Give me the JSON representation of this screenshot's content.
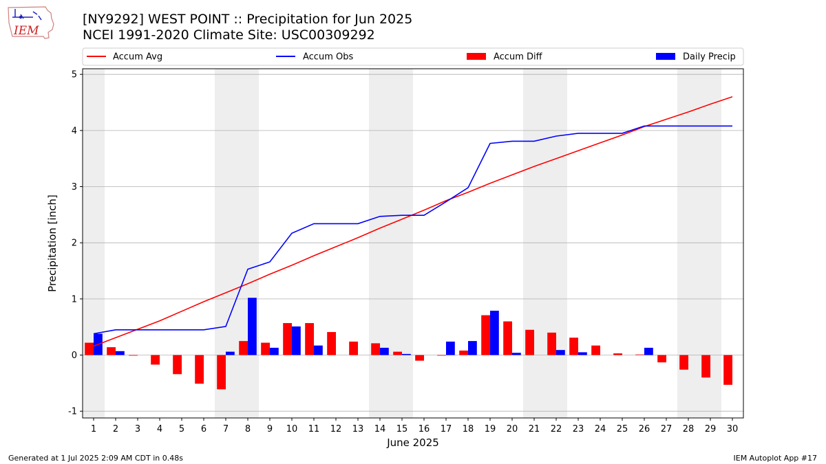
{
  "header": {
    "title_line1": "[NY9292] WEST POINT :: Precipitation for Jun 2025",
    "title_line2": "NCEI 1991-2020 Climate Site: USC00309292"
  },
  "logo": {
    "text": "IEM"
  },
  "footer": {
    "left": "Generated at 1 Jul 2025 2:09 AM CDT in 0.48s",
    "right": "IEM Autoplot App #17"
  },
  "colors": {
    "avg": "#ff0000",
    "obs": "#0000ff",
    "diff": "#ff0000",
    "daily": "#0000ff",
    "weekend_shade": "#eeeeee",
    "grid": "#b0b0b0"
  },
  "chart_data": {
    "type": "bar",
    "xlabel": "June 2025",
    "ylabel": "Precipitation [inch]",
    "xlim": [
      0.5,
      30.5
    ],
    "ylim": [
      -1.12,
      5.1
    ],
    "yticks": [
      -1,
      0,
      1,
      2,
      3,
      4,
      5
    ],
    "grid": true,
    "legend_position": "top",
    "days": [
      1,
      2,
      3,
      4,
      5,
      6,
      7,
      8,
      9,
      10,
      11,
      12,
      13,
      14,
      15,
      16,
      17,
      18,
      19,
      20,
      21,
      22,
      23,
      24,
      25,
      26,
      27,
      28,
      29,
      30
    ],
    "shaded_weekend_days": [
      1,
      7,
      8,
      14,
      15,
      21,
      22,
      28,
      29
    ],
    "series": [
      {
        "name": "Accum Avg",
        "kind": "line",
        "values": [
          0.16,
          0.31,
          0.46,
          0.61,
          0.78,
          0.95,
          1.11,
          1.27,
          1.44,
          1.6,
          1.77,
          1.93,
          2.09,
          2.26,
          2.42,
          2.58,
          2.75,
          2.9,
          3.06,
          3.21,
          3.36,
          3.5,
          3.64,
          3.78,
          3.92,
          4.07,
          4.2,
          4.33,
          4.47,
          4.6
        ]
      },
      {
        "name": "Accum Obs",
        "kind": "line",
        "values": [
          0.38,
          0.45,
          0.45,
          0.45,
          0.45,
          0.45,
          0.51,
          1.53,
          1.66,
          2.17,
          2.34,
          2.34,
          2.34,
          2.47,
          2.49,
          2.49,
          2.73,
          2.98,
          3.77,
          3.81,
          3.81,
          3.9,
          3.95,
          3.95,
          3.95,
          4.08,
          4.08,
          4.08,
          4.08,
          4.08
        ]
      },
      {
        "name": "Accum Diff",
        "kind": "bar",
        "values": [
          0.22,
          0.14,
          -0.01,
          -0.17,
          -0.34,
          -0.51,
          -0.61,
          0.25,
          0.22,
          0.57,
          0.57,
          0.41,
          0.24,
          0.21,
          0.06,
          -0.1,
          -0.01,
          0.08,
          0.71,
          0.6,
          0.45,
          0.4,
          0.31,
          0.17,
          0.03,
          0.01,
          -0.13,
          -0.26,
          -0.4,
          -0.53
        ]
      },
      {
        "name": "Daily Precip",
        "kind": "bar",
        "values": [
          0.38,
          0.07,
          0,
          0,
          0,
          0,
          0.06,
          1.02,
          0.13,
          0.51,
          0.17,
          0,
          0,
          0.13,
          0.02,
          0,
          0.24,
          0.25,
          0.79,
          0.04,
          0,
          0.09,
          0.05,
          0,
          0,
          0.13,
          0,
          0,
          0,
          0
        ]
      }
    ]
  }
}
